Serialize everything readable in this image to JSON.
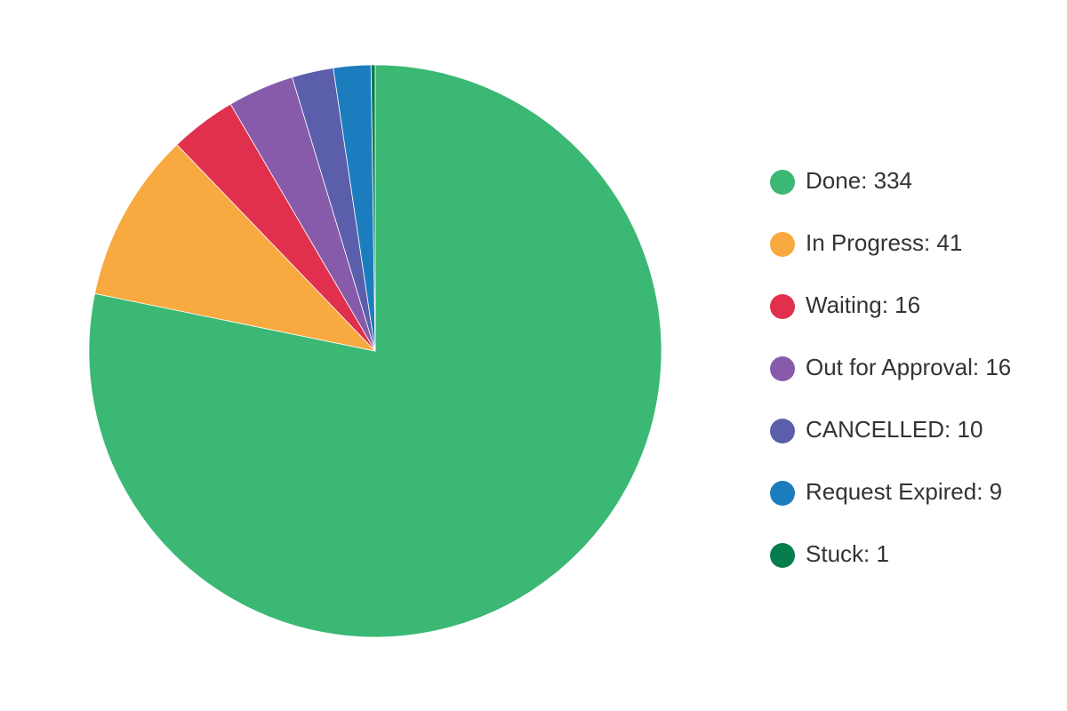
{
  "chart_data": {
    "type": "pie",
    "categories": [
      "Done: 334",
      "In Progress: 41",
      "Waiting: 16",
      "Out for Approval: 16",
      "CANCELLED: 10",
      "Request Expired: 9",
      "Stuck: 1"
    ],
    "values": [
      334,
      41,
      16,
      16,
      10,
      9,
      1
    ],
    "colors": [
      "#3bb873",
      "#f8a93f",
      "#e0304e",
      "#875baa",
      "#5a5eab",
      "#1b7cbe",
      "#077d4d"
    ],
    "legend": "right"
  }
}
